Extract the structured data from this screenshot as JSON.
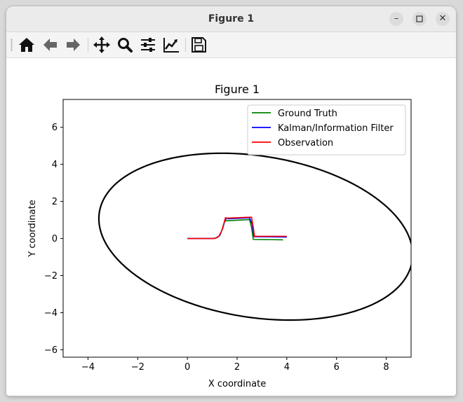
{
  "window": {
    "title": "Figure 1",
    "controls": {
      "minimize": "–",
      "maximize": "☐",
      "close": "✕"
    }
  },
  "toolbar": {
    "buttons": [
      {
        "name": "home",
        "icon": "home-icon"
      },
      {
        "name": "back",
        "icon": "arrow-left-icon"
      },
      {
        "name": "forward",
        "icon": "arrow-right-icon"
      },
      {
        "name": "pan",
        "icon": "move-icon"
      },
      {
        "name": "zoom",
        "icon": "magnifier-icon"
      },
      {
        "name": "subplots",
        "icon": "sliders-icon"
      },
      {
        "name": "customize",
        "icon": "line-chart-icon"
      },
      {
        "name": "save",
        "icon": "floppy-disk-icon"
      }
    ]
  },
  "chart_data": {
    "type": "line",
    "title": "Figure 1",
    "xlabel": "X coordinate",
    "ylabel": "Y coordinate",
    "xlim": [
      -5,
      9
    ],
    "ylim": [
      -6.4,
      7.5
    ],
    "xticks": [
      -4,
      -2,
      0,
      2,
      4,
      6,
      8
    ],
    "xtick_labels": [
      "−4",
      "−2",
      "0",
      "2",
      "4",
      "6",
      "8"
    ],
    "yticks": [
      -6,
      -4,
      -2,
      0,
      2,
      4,
      6
    ],
    "ytick_labels": [
      "−6",
      "−4",
      "−2",
      "0",
      "2",
      "4",
      "6"
    ],
    "grid": false,
    "legend_position": "top-right",
    "series": [
      {
        "name": "Ground Truth",
        "color": "#008000",
        "x": [
          0,
          1.1,
          1.3,
          1.42,
          1.5,
          2.5,
          2.58,
          2.65,
          3.85
        ],
        "y": [
          0,
          0,
          0.15,
          0.55,
          0.95,
          1.02,
          0.6,
          -0.05,
          -0.07
        ]
      },
      {
        "name": "Kalman/Information Filter",
        "color": "#0000ff",
        "x": [
          0,
          1.05,
          1.2,
          1.32,
          1.42,
          1.5,
          1.57,
          1.65,
          2.5,
          2.6,
          2.68,
          4.0
        ],
        "y": [
          0,
          0,
          0.05,
          0.22,
          0.55,
          0.92,
          1.1,
          1.06,
          1.12,
          0.8,
          0.1,
          0.08
        ]
      },
      {
        "name": "Observation",
        "color": "#ff0000",
        "x": [
          0,
          1.1,
          1.25,
          1.37,
          1.46,
          1.53,
          1.6,
          2.58,
          2.65,
          2.7,
          4.0
        ],
        "y": [
          0,
          0,
          0.1,
          0.38,
          0.78,
          1.12,
          1.1,
          1.15,
          0.6,
          0.12,
          0.12
        ]
      }
    ],
    "ellipse": {
      "color": "#000000",
      "center": [
        2.75,
        0.1
      ],
      "semi_major": 6.45,
      "semi_minor": 4.3,
      "angle_deg": -16
    }
  }
}
